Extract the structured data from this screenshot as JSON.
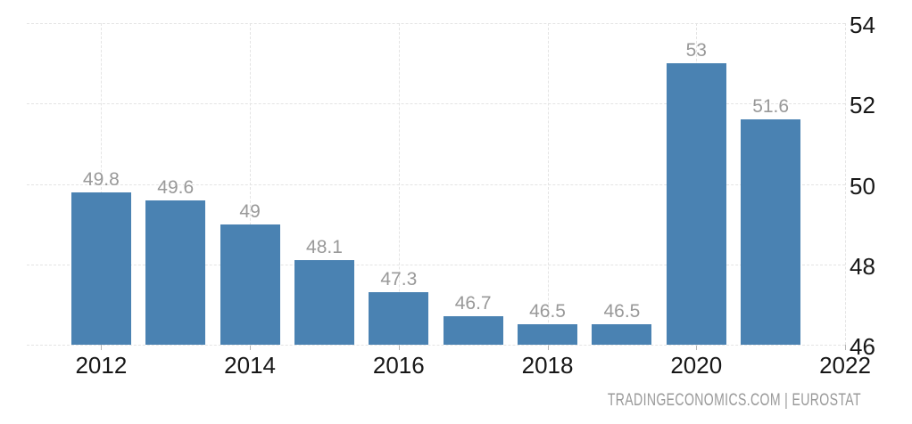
{
  "chart_data": {
    "type": "bar",
    "title": "",
    "xlabel": "",
    "ylabel": "",
    "categories": [
      "2012",
      "2013",
      "2014",
      "2015",
      "2016",
      "2017",
      "2018",
      "2019",
      "2020",
      "2021"
    ],
    "values": [
      49.8,
      49.6,
      49,
      48.1,
      47.3,
      46.7,
      46.5,
      46.5,
      53,
      51.6
    ],
    "bar_labels": [
      "49.8",
      "49.6",
      "49",
      "48.1",
      "47.3",
      "46.7",
      "46.5",
      "46.5",
      "53",
      "51.6"
    ],
    "ylim": [
      46,
      54
    ],
    "x_range": [
      2011,
      2022
    ],
    "y_ticks": [
      54,
      52,
      50,
      48,
      46
    ],
    "y_tick_labels": [
      "54",
      "52",
      "50",
      "48",
      "46"
    ],
    "x_ticks": [
      2012,
      2014,
      2016,
      2018,
      2020,
      2022
    ],
    "x_tick_labels": [
      "2012",
      "2014",
      "2016",
      "2018",
      "2020",
      "2022"
    ],
    "grid": "dashed, horizontal and vertical, light gray",
    "legend": "none",
    "yaxis_position": "right",
    "colors": {
      "bar": "#4a82b2",
      "value_label": "#999999",
      "axis_label": "#171717",
      "gridline": "#e4e4e4",
      "background": "#ffffff"
    }
  },
  "attribution": {
    "text": "TRADINGECONOMICS.COM | EUROSTAT"
  }
}
